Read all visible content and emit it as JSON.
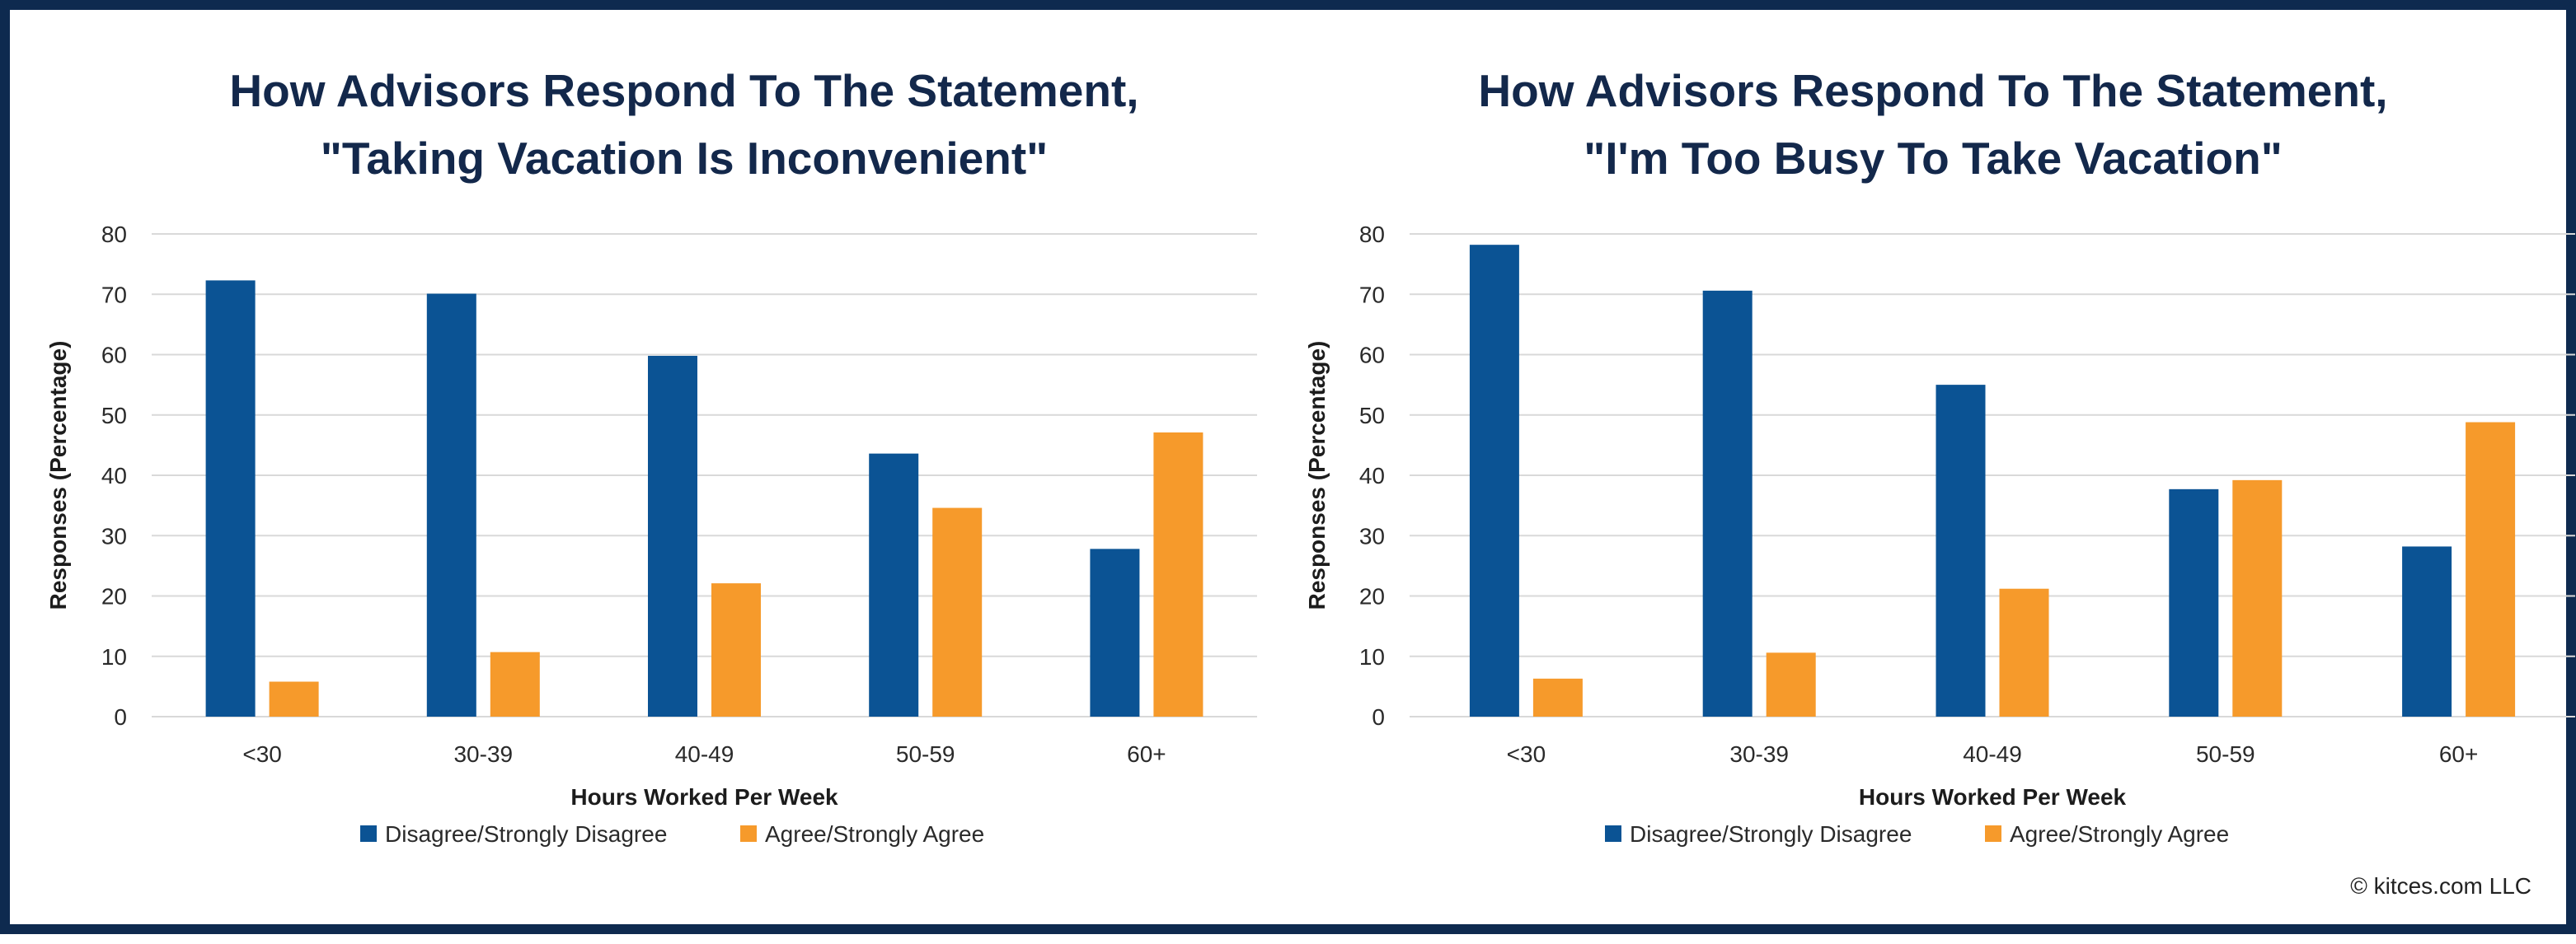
{
  "colors": {
    "disagree": "#0b5394",
    "agree": "#f69a2b",
    "title": "#13284b",
    "frame": "#0e2a4f"
  },
  "credit": "© kitces.com LLC",
  "chart_data": [
    {
      "type": "bar",
      "title_lines": [
        "How Advisors Respond To The Statement,",
        "\"Taking Vacation Is Inconvenient\""
      ],
      "xlabel": "Hours Worked Per Week",
      "ylabel": "Responses (Percentage)",
      "categories": [
        "<30",
        "30-39",
        "40-49",
        "50-59",
        "60+"
      ],
      "ylim": [
        0,
        80
      ],
      "yticks": [
        0,
        10,
        20,
        30,
        40,
        50,
        60,
        70,
        80
      ],
      "grid": true,
      "legend_position": "bottom",
      "series": [
        {
          "name": "Disagree/Strongly Disagree",
          "color_key": "disagree",
          "values": [
            72.3,
            70.1,
            59.8,
            43.6,
            27.8
          ]
        },
        {
          "name": "Agree/Strongly Agree",
          "color_key": "agree",
          "values": [
            5.8,
            10.7,
            22.1,
            34.6,
            47.1
          ]
        }
      ]
    },
    {
      "type": "bar",
      "title_lines": [
        "How Advisors Respond To The Statement,",
        "\"I'm Too Busy To Take Vacation\""
      ],
      "xlabel": "Hours Worked Per Week",
      "ylabel": "Responses (Percentage)",
      "categories": [
        "<30",
        "30-39",
        "40-49",
        "50-59",
        "60+"
      ],
      "ylim": [
        0,
        80
      ],
      "yticks": [
        0,
        10,
        20,
        30,
        40,
        50,
        60,
        70,
        80
      ],
      "grid": true,
      "legend_position": "bottom",
      "series": [
        {
          "name": "Disagree/Strongly Disagree",
          "color_key": "disagree",
          "values": [
            78.2,
            70.6,
            55.0,
            37.7,
            28.2
          ]
        },
        {
          "name": "Agree/Strongly Agree",
          "color_key": "agree",
          "values": [
            6.3,
            10.6,
            21.2,
            39.2,
            48.8
          ]
        }
      ]
    }
  ]
}
